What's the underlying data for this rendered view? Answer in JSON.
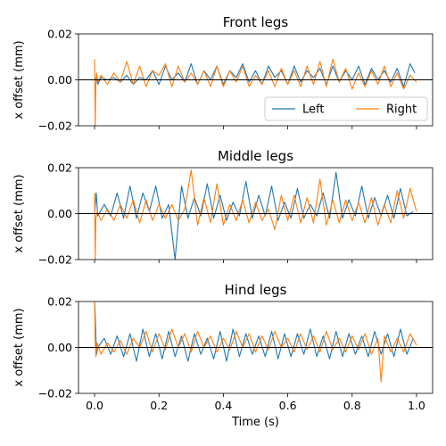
{
  "chart_data": [
    {
      "type": "line",
      "title": "Front legs",
      "xlabel": "",
      "ylabel": "x offset (mm)",
      "xlim": [
        -0.05,
        1.05
      ],
      "ylim": [
        -0.02,
        0.02
      ],
      "x_ticks": [
        0.0,
        0.2,
        0.4,
        0.6,
        0.8,
        1.0
      ],
      "x_tick_labels": [
        "",
        "",
        "",
        "",
        "",
        ""
      ],
      "y_ticks": [
        -0.02,
        0.0,
        0.02
      ],
      "y_tick_labels": [
        "−0.02",
        "0.00",
        "0.02"
      ],
      "zero_line": true,
      "legend": {
        "placement": "lower-right",
        "columns": 2,
        "entries": [
          "Left",
          "Right"
        ]
      },
      "series": [
        {
          "name": "Left",
          "color": "#1f77b4",
          "x": [
            0.0,
            0.005,
            0.01,
            0.02,
            0.04,
            0.06,
            0.08,
            0.1,
            0.12,
            0.14,
            0.16,
            0.18,
            0.2,
            0.22,
            0.24,
            0.26,
            0.28,
            0.3,
            0.32,
            0.34,
            0.36,
            0.38,
            0.4,
            0.42,
            0.44,
            0.46,
            0.48,
            0.5,
            0.52,
            0.54,
            0.56,
            0.58,
            0.6,
            0.62,
            0.64,
            0.66,
            0.68,
            0.7,
            0.72,
            0.74,
            0.76,
            0.78,
            0.8,
            0.82,
            0.84,
            0.86,
            0.88,
            0.9,
            0.92,
            0.94,
            0.96,
            0.98,
            0.995
          ],
          "y": [
            0.0,
            0.001,
            -0.002,
            0.001,
            0.0,
            0.001,
            -0.001,
            0.002,
            -0.002,
            0.001,
            0.0,
            0.004,
            -0.002,
            0.006,
            0.0,
            0.003,
            -0.001,
            0.007,
            -0.002,
            0.004,
            0.0,
            0.006,
            -0.002,
            0.004,
            0.001,
            0.007,
            -0.001,
            0.004,
            -0.002,
            0.006,
            0.001,
            0.004,
            -0.002,
            0.006,
            -0.001,
            0.004,
            0.001,
            0.005,
            -0.002,
            0.006,
            -0.001,
            0.004,
            0.0,
            0.006,
            -0.002,
            0.005,
            0.0,
            0.004,
            -0.001,
            0.005,
            -0.003,
            0.007,
            0.003
          ]
        },
        {
          "name": "Right",
          "color": "#ff7f0e",
          "x": [
            0.0,
            0.002,
            0.004,
            0.006,
            0.01,
            0.02,
            0.04,
            0.06,
            0.08,
            0.1,
            0.12,
            0.14,
            0.16,
            0.18,
            0.2,
            0.22,
            0.24,
            0.26,
            0.28,
            0.3,
            0.32,
            0.34,
            0.36,
            0.38,
            0.4,
            0.42,
            0.44,
            0.46,
            0.48,
            0.5,
            0.52,
            0.54,
            0.56,
            0.58,
            0.6,
            0.62,
            0.64,
            0.66,
            0.68,
            0.7,
            0.72,
            0.74,
            0.76,
            0.78,
            0.8,
            0.82,
            0.84,
            0.86,
            0.88,
            0.9,
            0.92,
            0.94,
            0.96,
            0.98,
            1.0
          ],
          "y": [
            0.009,
            -0.02,
            -0.002,
            0.003,
            -0.001,
            0.002,
            -0.002,
            0.003,
            -0.001,
            0.008,
            -0.002,
            0.006,
            -0.003,
            0.004,
            0.002,
            0.007,
            -0.003,
            0.006,
            -0.001,
            0.003,
            -0.002,
            0.004,
            -0.003,
            0.006,
            -0.003,
            0.004,
            -0.001,
            0.006,
            -0.003,
            0.002,
            -0.002,
            0.004,
            -0.003,
            0.005,
            -0.002,
            0.004,
            -0.003,
            0.006,
            -0.002,
            0.008,
            -0.003,
            0.009,
            -0.001,
            0.005,
            -0.004,
            0.003,
            -0.003,
            0.004,
            -0.002,
            0.006,
            -0.003,
            0.003,
            -0.004,
            0.002,
            -0.001
          ]
        }
      ]
    },
    {
      "type": "line",
      "title": "Middle legs",
      "xlabel": "",
      "ylabel": "x offset (mm)",
      "xlim": [
        -0.05,
        1.05
      ],
      "ylim": [
        -0.02,
        0.02
      ],
      "x_ticks": [
        0.0,
        0.2,
        0.4,
        0.6,
        0.8,
        1.0
      ],
      "x_tick_labels": [
        "",
        "",
        "",
        "",
        "",
        ""
      ],
      "y_ticks": [
        -0.02,
        0.0,
        0.02
      ],
      "y_tick_labels": [
        "−0.02",
        "0.00",
        "0.02"
      ],
      "zero_line": true,
      "series": [
        {
          "name": "Left",
          "color": "#1f77b4",
          "x": [
            0.0,
            0.005,
            0.01,
            0.03,
            0.05,
            0.07,
            0.09,
            0.11,
            0.13,
            0.15,
            0.17,
            0.19,
            0.21,
            0.23,
            0.25,
            0.27,
            0.29,
            0.31,
            0.33,
            0.35,
            0.37,
            0.39,
            0.41,
            0.43,
            0.45,
            0.47,
            0.49,
            0.51,
            0.53,
            0.55,
            0.57,
            0.59,
            0.61,
            0.63,
            0.65,
            0.67,
            0.69,
            0.71,
            0.73,
            0.75,
            0.77,
            0.79,
            0.81,
            0.83,
            0.85,
            0.87,
            0.89,
            0.91,
            0.93,
            0.95,
            0.97,
            0.99
          ],
          "y": [
            0.0,
            0.009,
            -0.001,
            0.004,
            -0.001,
            0.009,
            -0.002,
            0.012,
            -0.002,
            0.009,
            0.001,
            0.012,
            -0.002,
            0.004,
            -0.02,
            0.012,
            -0.002,
            0.007,
            -0.001,
            0.013,
            -0.002,
            0.008,
            -0.003,
            0.005,
            -0.001,
            0.014,
            -0.002,
            0.008,
            -0.001,
            0.012,
            -0.003,
            0.005,
            -0.002,
            0.011,
            -0.002,
            0.004,
            -0.001,
            0.009,
            -0.002,
            0.018,
            -0.002,
            0.006,
            -0.001,
            0.012,
            -0.002,
            0.007,
            -0.001,
            0.008,
            -0.002,
            0.011,
            -0.001,
            0.001
          ]
        },
        {
          "name": "Right",
          "color": "#ff7f0e",
          "x": [
            0.0,
            0.002,
            0.004,
            0.008,
            0.02,
            0.04,
            0.06,
            0.08,
            0.1,
            0.12,
            0.14,
            0.16,
            0.18,
            0.2,
            0.22,
            0.24,
            0.26,
            0.28,
            0.3,
            0.32,
            0.34,
            0.36,
            0.38,
            0.4,
            0.42,
            0.44,
            0.46,
            0.48,
            0.5,
            0.52,
            0.54,
            0.56,
            0.58,
            0.6,
            0.62,
            0.64,
            0.66,
            0.68,
            0.7,
            0.72,
            0.74,
            0.76,
            0.78,
            0.8,
            0.82,
            0.84,
            0.86,
            0.88,
            0.9,
            0.92,
            0.94,
            0.96,
            0.98,
            1.0
          ],
          "y": [
            0.009,
            -0.02,
            -0.002,
            0.001,
            -0.003,
            0.002,
            -0.003,
            0.004,
            -0.002,
            0.006,
            -0.004,
            0.006,
            -0.003,
            0.004,
            -0.002,
            0.004,
            -0.003,
            0.002,
            0.019,
            -0.005,
            0.007,
            -0.004,
            0.013,
            -0.005,
            0.004,
            -0.003,
            0.006,
            -0.004,
            0.005,
            -0.003,
            0.002,
            -0.007,
            0.008,
            -0.003,
            0.008,
            -0.004,
            0.007,
            -0.004,
            0.015,
            -0.005,
            0.006,
            -0.004,
            0.006,
            -0.003,
            0.005,
            -0.004,
            0.007,
            -0.005,
            0.004,
            -0.004,
            0.01,
            -0.002,
            0.011,
            0.001
          ]
        }
      ]
    },
    {
      "type": "line",
      "title": "Hind legs",
      "xlabel": "Time (s)",
      "ylabel": "x offset (mm)",
      "xlim": [
        -0.05,
        1.05
      ],
      "ylim": [
        -0.02,
        0.02
      ],
      "x_ticks": [
        0.0,
        0.2,
        0.4,
        0.6,
        0.8,
        1.0
      ],
      "x_tick_labels": [
        "0.0",
        "0.2",
        "0.4",
        "0.6",
        "0.8",
        "1.0"
      ],
      "y_ticks": [
        -0.02,
        0.0,
        0.02
      ],
      "y_tick_labels": [
        "−0.02",
        "0.00",
        "0.02"
      ],
      "zero_line": true,
      "series": [
        {
          "name": "Left",
          "color": "#1f77b4",
          "x": [
            0.0,
            0.002,
            0.006,
            0.01,
            0.03,
            0.05,
            0.07,
            0.09,
            0.11,
            0.13,
            0.15,
            0.17,
            0.19,
            0.21,
            0.23,
            0.25,
            0.27,
            0.29,
            0.31,
            0.33,
            0.35,
            0.37,
            0.39,
            0.41,
            0.43,
            0.45,
            0.47,
            0.49,
            0.51,
            0.53,
            0.55,
            0.57,
            0.59,
            0.61,
            0.63,
            0.65,
            0.67,
            0.69,
            0.71,
            0.73,
            0.75,
            0.77,
            0.79,
            0.81,
            0.83,
            0.85,
            0.87,
            0.89,
            0.91,
            0.93,
            0.95,
            0.97,
            0.99
          ],
          "y": [
            0.02,
            0.014,
            -0.003,
            0.0,
            0.004,
            -0.003,
            0.005,
            -0.004,
            0.006,
            -0.006,
            0.008,
            -0.004,
            0.006,
            -0.005,
            0.007,
            -0.004,
            0.005,
            -0.006,
            0.006,
            -0.003,
            0.004,
            -0.005,
            0.007,
            -0.006,
            0.008,
            -0.004,
            0.006,
            -0.003,
            0.005,
            -0.004,
            0.007,
            -0.005,
            0.006,
            -0.004,
            0.006,
            -0.003,
            0.008,
            -0.004,
            0.005,
            -0.005,
            0.007,
            -0.004,
            0.006,
            -0.003,
            0.005,
            -0.004,
            0.007,
            -0.003,
            0.006,
            -0.004,
            0.008,
            -0.003,
            0.004
          ]
        },
        {
          "name": "Right",
          "color": "#ff7f0e",
          "x": [
            0.0,
            0.002,
            0.004,
            0.008,
            0.02,
            0.04,
            0.06,
            0.08,
            0.1,
            0.12,
            0.14,
            0.16,
            0.18,
            0.2,
            0.22,
            0.24,
            0.26,
            0.28,
            0.3,
            0.32,
            0.34,
            0.36,
            0.38,
            0.4,
            0.42,
            0.44,
            0.46,
            0.48,
            0.5,
            0.52,
            0.54,
            0.56,
            0.58,
            0.6,
            0.62,
            0.64,
            0.66,
            0.68,
            0.7,
            0.72,
            0.74,
            0.76,
            0.78,
            0.8,
            0.82,
            0.84,
            0.86,
            0.88,
            0.89,
            0.9,
            0.92,
            0.94,
            0.96,
            0.98,
            1.0
          ],
          "y": [
            0.02,
            0.003,
            -0.004,
            0.002,
            -0.003,
            0.002,
            -0.002,
            0.003,
            -0.003,
            0.004,
            0.0,
            0.007,
            -0.002,
            0.006,
            -0.001,
            0.008,
            0.0,
            0.006,
            -0.002,
            0.007,
            0.0,
            0.005,
            -0.002,
            0.004,
            -0.001,
            0.007,
            0.0,
            0.006,
            -0.002,
            0.005,
            -0.001,
            0.007,
            0.0,
            0.004,
            -0.002,
            0.006,
            -0.001,
            0.005,
            -0.002,
            0.007,
            -0.001,
            0.004,
            -0.002,
            0.005,
            -0.001,
            0.006,
            -0.003,
            0.004,
            -0.015,
            0.005,
            -0.002,
            0.004,
            -0.002,
            0.006,
            0.001
          ]
        }
      ]
    }
  ]
}
